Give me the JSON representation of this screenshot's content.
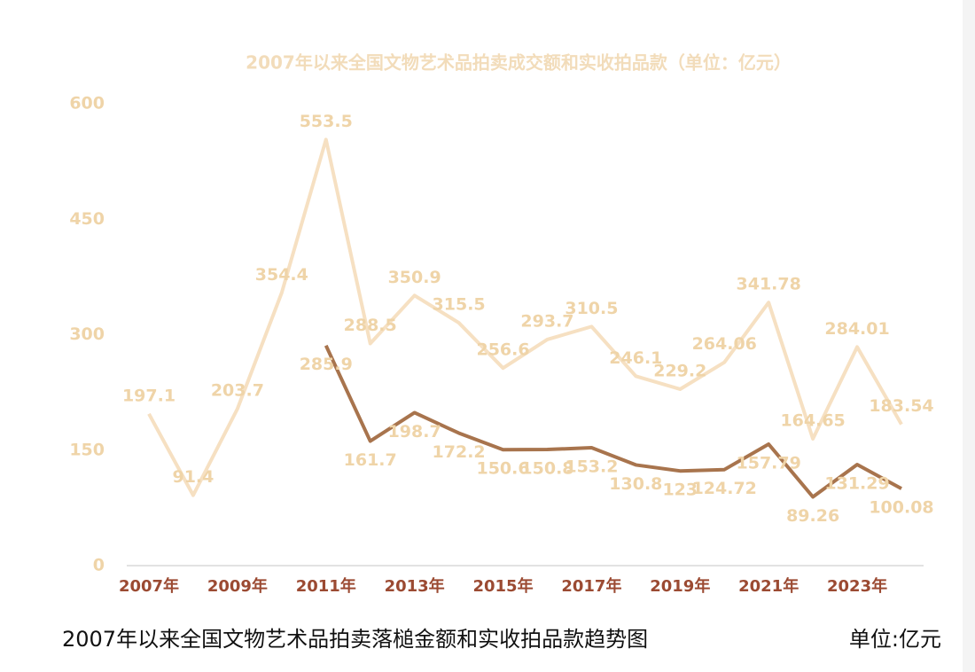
{
  "chart_data": {
    "type": "line",
    "title": "2007年以来全国文物艺术品拍卖成交额和实收拍品款（单位：亿元）",
    "categories": [
      "2007年",
      null,
      "2009年",
      null,
      "2011年",
      null,
      "2013年",
      null,
      "2015年",
      null,
      "2017年",
      null,
      "2019年",
      null,
      "2021年",
      null,
      "2023年",
      null
    ],
    "series": [
      {
        "color": "#f6e0c2",
        "label_color": "#efd4a8",
        "values": [
          197.1,
          91.4,
          203.7,
          354.4,
          553.5,
          288.5,
          350.9,
          315.5,
          256.6,
          293.7,
          310.5,
          246.1,
          229.2,
          264.06,
          341.78,
          164.65,
          284.01,
          183.54
        ]
      },
      {
        "color": "#a8744d",
        "label_color": "#efd4a8",
        "values": [
          null,
          null,
          null,
          null,
          285.9,
          161.7,
          198.7,
          172.2,
          150.6,
          150.8,
          153.2,
          130.8,
          123,
          124.72,
          157.79,
          89.26,
          131.29,
          100.08
        ]
      }
    ],
    "ylim": [
      0,
      600
    ],
    "yticks": [
      0,
      150,
      300,
      450,
      600
    ],
    "grid": false,
    "caption": "2007年以来全国文物艺术品拍卖落槌金额和实收拍品款趋势图",
    "unit_note": "单位:亿元"
  }
}
